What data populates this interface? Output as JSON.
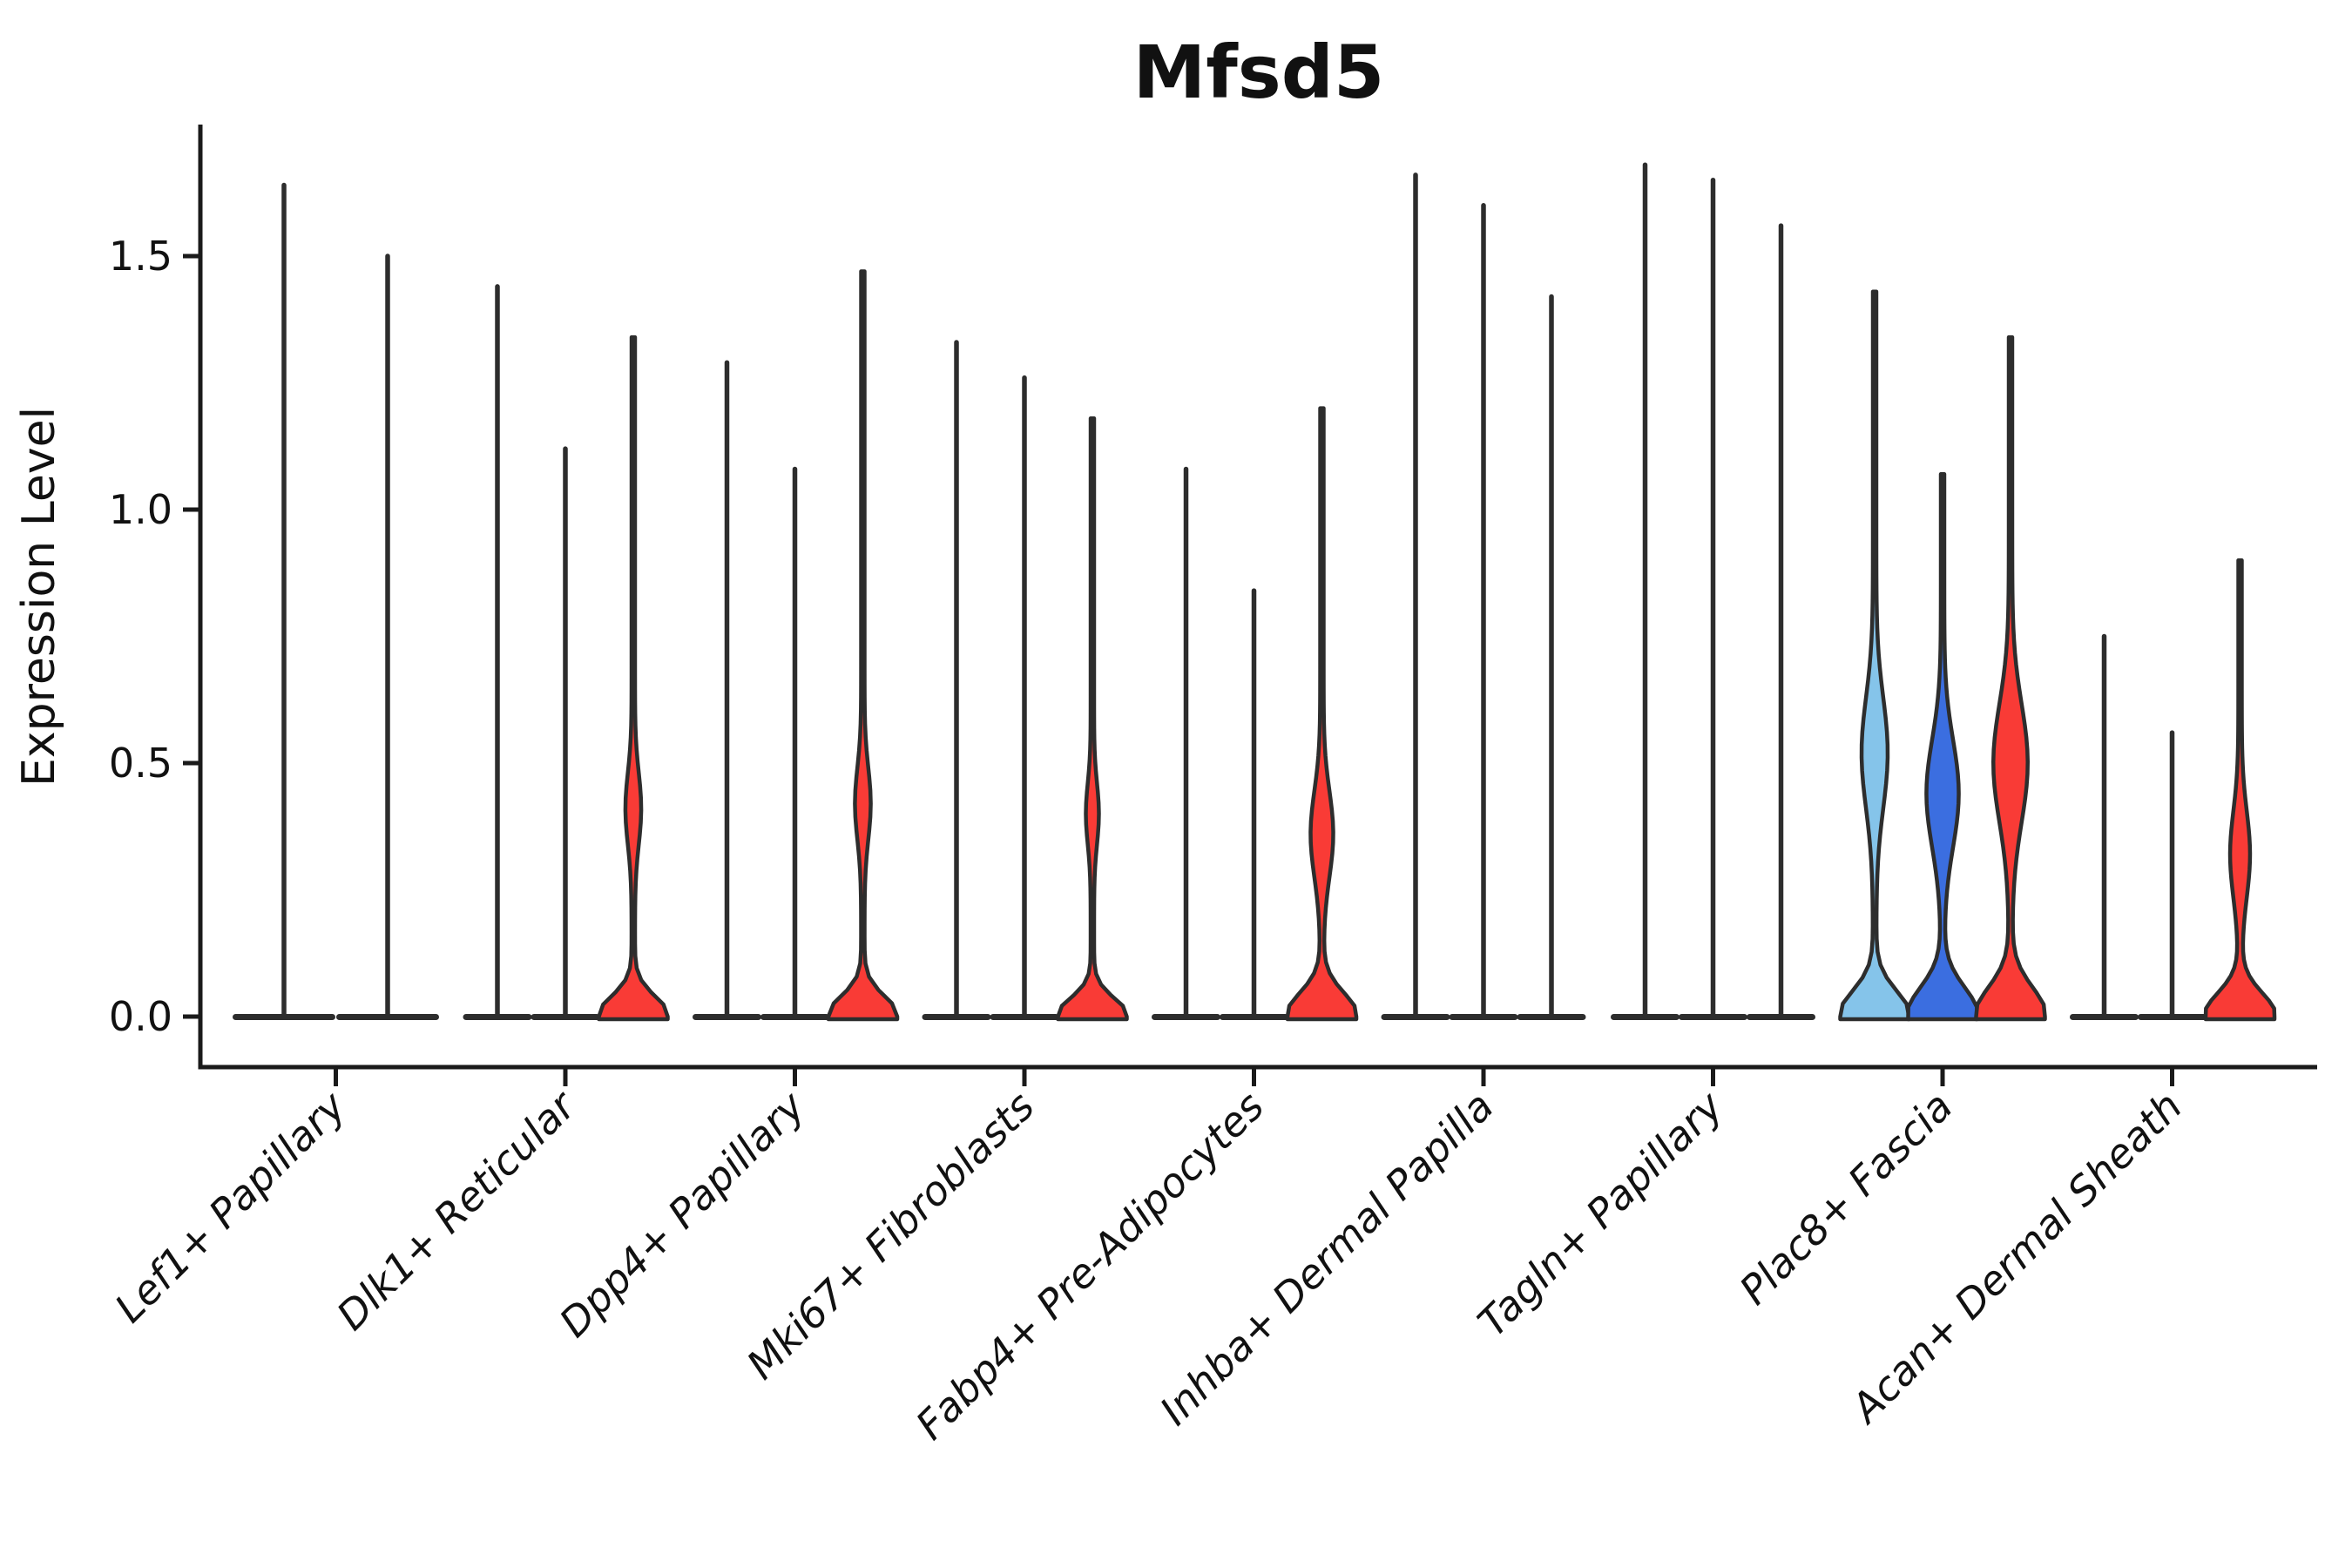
{
  "title": "Mfsd5",
  "ylabel": "Expression Level",
  "chart_data": {
    "type": "violin",
    "title": "Mfsd5",
    "xlabel": "",
    "ylabel": "Expression Level",
    "ylim": [
      0,
      1.75
    ],
    "yticks": [
      0.0,
      0.5,
      1.0,
      1.5
    ],
    "ytick_labels": [
      "0.0",
      "0.5",
      "1.0",
      "1.5"
    ],
    "grid": false,
    "legend": "none",
    "x_tick_rotation_deg": 45,
    "categories": [
      "Lef1+ Papillary",
      "Dlk1+ Reticular",
      "Dpp4+ Papillary",
      "Mki67+ Fibroblasts",
      "Fabp4+ Pre-Adipocytes",
      "Inhba+ Dermal Papilla",
      "Tagln+ Papillary",
      "Plac8+ Fascia",
      "Acan+ Dermal Sheath"
    ],
    "colors": {
      "spike": "#2d2d2d",
      "outline": "#2d2d2d",
      "red_fill": "#f93b36",
      "skyblue_fill": "#85c4ea",
      "royalblue_fill": "#3b6ee0",
      "axis": "#1a1a1a"
    },
    "groups": [
      {
        "category": "Lef1+ Papillary",
        "violins": [
          {
            "kind": "spike",
            "max": 1.64
          },
          {
            "kind": "spike",
            "max": 1.5
          }
        ]
      },
      {
        "category": "Dlk1+ Reticular",
        "violins": [
          {
            "kind": "spike",
            "max": 1.44
          },
          {
            "kind": "spike",
            "max": 1.12
          },
          {
            "kind": "violin",
            "fill": "#f93b36",
            "max": 1.34,
            "bulge": {
              "c": 0.41,
              "s": 0.1,
              "a": 0.18
            },
            "base_s": 0.055
          }
        ]
      },
      {
        "category": "Dpp4+ Papillary",
        "violins": [
          {
            "kind": "spike",
            "max": 1.29
          },
          {
            "kind": "spike",
            "max": 1.08
          },
          {
            "kind": "violin",
            "fill": "#f93b36",
            "max": 1.47,
            "bulge": {
              "c": 0.42,
              "s": 0.1,
              "a": 0.18
            },
            "base_s": 0.055
          }
        ]
      },
      {
        "category": "Mki67+ Fibroblasts",
        "violins": [
          {
            "kind": "spike",
            "max": 1.33
          },
          {
            "kind": "spike",
            "max": 1.26
          },
          {
            "kind": "violin",
            "fill": "#f93b36",
            "max": 1.18,
            "bulge": {
              "c": 0.4,
              "s": 0.085,
              "a": 0.14
            },
            "base_s": 0.05
          }
        ]
      },
      {
        "category": "Fabp4+ Pre-Adipocytes",
        "violins": [
          {
            "kind": "spike",
            "max": 1.08
          },
          {
            "kind": "spike",
            "max": 0.84
          },
          {
            "kind": "violin",
            "fill": "#f93b36",
            "max": 1.2,
            "bulge": {
              "c": 0.36,
              "s": 0.12,
              "a": 0.28
            },
            "base_s": 0.065
          }
        ]
      },
      {
        "category": "Inhba+ Dermal Papilla",
        "violins": [
          {
            "kind": "spike",
            "max": 1.66
          },
          {
            "kind": "spike",
            "max": 1.6
          },
          {
            "kind": "spike",
            "max": 1.42
          }
        ]
      },
      {
        "category": "Tagln+ Papillary",
        "violins": [
          {
            "kind": "spike",
            "max": 1.68
          },
          {
            "kind": "spike",
            "max": 1.65
          },
          {
            "kind": "spike",
            "max": 1.56
          }
        ]
      },
      {
        "category": "Plac8+ Fascia",
        "violins": [
          {
            "kind": "violin",
            "fill": "#85c4ea",
            "max": 1.43,
            "bulge": {
              "c": 0.52,
              "s": 0.155,
              "a": 0.33
            },
            "base_s": 0.07
          },
          {
            "kind": "violin",
            "fill": "#3b6ee0",
            "max": 1.07,
            "bulge": {
              "c": 0.44,
              "s": 0.15,
              "a": 0.42
            },
            "base_s": 0.08
          },
          {
            "kind": "violin",
            "fill": "#f93b36",
            "max": 1.34,
            "bulge": {
              "c": 0.5,
              "s": 0.165,
              "a": 0.45
            },
            "base_s": 0.08
          }
        ]
      },
      {
        "category": "Acan+ Dermal Sheath",
        "violins": [
          {
            "kind": "spike",
            "max": 0.75
          },
          {
            "kind": "spike",
            "max": 0.56
          },
          {
            "kind": "violin",
            "fill": "#f93b36",
            "max": 0.9,
            "bulge": {
              "c": 0.32,
              "s": 0.12,
              "a": 0.24
            },
            "base_s": 0.065
          }
        ]
      }
    ]
  }
}
